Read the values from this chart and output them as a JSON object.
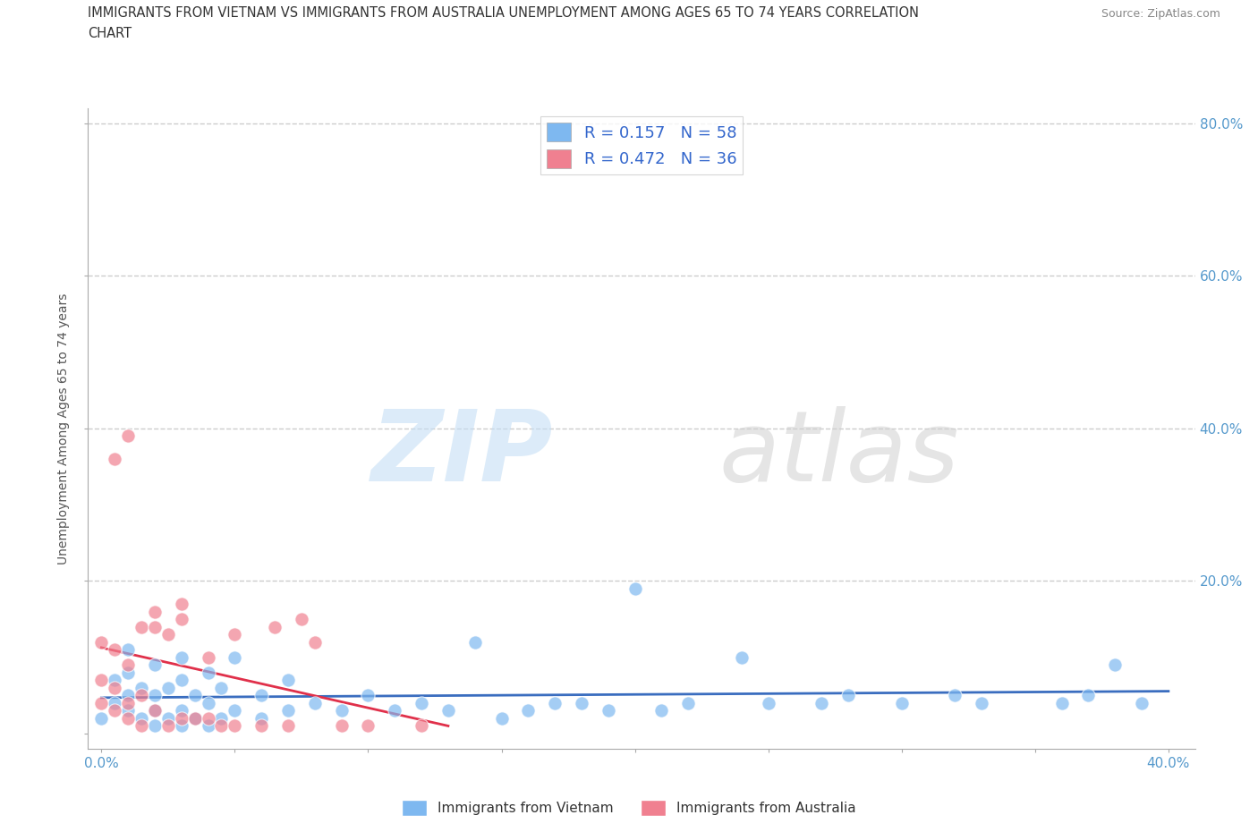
{
  "title_line1": "IMMIGRANTS FROM VIETNAM VS IMMIGRANTS FROM AUSTRALIA UNEMPLOYMENT AMONG AGES 65 TO 74 YEARS CORRELATION",
  "title_line2": "CHART",
  "source": "Source: ZipAtlas.com",
  "ylabel": "Unemployment Among Ages 65 to 74 years",
  "xlim": [
    -0.005,
    0.41
  ],
  "ylim": [
    -0.02,
    0.82
  ],
  "xticks": [
    0.0,
    0.05,
    0.1,
    0.15,
    0.2,
    0.25,
    0.3,
    0.35,
    0.4
  ],
  "yticks": [
    0.0,
    0.2,
    0.4,
    0.6,
    0.8
  ],
  "vietnam_color": "#7eb8f0",
  "australia_color": "#f08090",
  "trend_vietnam_color": "#3a6dbf",
  "trend_australia_color": "#e0304a",
  "vietnam_R": 0.157,
  "vietnam_N": 58,
  "australia_R": 0.472,
  "australia_N": 36,
  "watermark": "ZIPatlas",
  "vietnam_scatter_x": [
    0.0,
    0.005,
    0.005,
    0.01,
    0.01,
    0.01,
    0.01,
    0.015,
    0.015,
    0.02,
    0.02,
    0.02,
    0.02,
    0.025,
    0.025,
    0.03,
    0.03,
    0.03,
    0.03,
    0.035,
    0.035,
    0.04,
    0.04,
    0.04,
    0.045,
    0.045,
    0.05,
    0.05,
    0.06,
    0.06,
    0.07,
    0.07,
    0.08,
    0.09,
    0.1,
    0.11,
    0.12,
    0.13,
    0.14,
    0.15,
    0.16,
    0.17,
    0.18,
    0.19,
    0.2,
    0.21,
    0.22,
    0.24,
    0.25,
    0.27,
    0.28,
    0.3,
    0.32,
    0.33,
    0.36,
    0.37,
    0.38,
    0.39
  ],
  "vietnam_scatter_y": [
    0.02,
    0.04,
    0.07,
    0.03,
    0.05,
    0.08,
    0.11,
    0.02,
    0.06,
    0.01,
    0.03,
    0.05,
    0.09,
    0.02,
    0.06,
    0.01,
    0.03,
    0.07,
    0.1,
    0.02,
    0.05,
    0.01,
    0.04,
    0.08,
    0.02,
    0.06,
    0.03,
    0.1,
    0.02,
    0.05,
    0.03,
    0.07,
    0.04,
    0.03,
    0.05,
    0.03,
    0.04,
    0.03,
    0.12,
    0.02,
    0.03,
    0.04,
    0.04,
    0.03,
    0.19,
    0.03,
    0.04,
    0.1,
    0.04,
    0.04,
    0.05,
    0.04,
    0.05,
    0.04,
    0.04,
    0.05,
    0.09,
    0.04
  ],
  "australia_scatter_x": [
    0.0,
    0.0,
    0.0,
    0.005,
    0.005,
    0.005,
    0.005,
    0.01,
    0.01,
    0.01,
    0.01,
    0.015,
    0.015,
    0.015,
    0.02,
    0.02,
    0.02,
    0.025,
    0.025,
    0.03,
    0.03,
    0.03,
    0.035,
    0.04,
    0.04,
    0.045,
    0.05,
    0.05,
    0.06,
    0.065,
    0.07,
    0.075,
    0.08,
    0.09,
    0.1,
    0.12
  ],
  "australia_scatter_y": [
    0.04,
    0.07,
    0.12,
    0.03,
    0.06,
    0.11,
    0.36,
    0.02,
    0.04,
    0.09,
    0.39,
    0.01,
    0.05,
    0.14,
    0.03,
    0.14,
    0.16,
    0.01,
    0.13,
    0.02,
    0.15,
    0.17,
    0.02,
    0.02,
    0.1,
    0.01,
    0.01,
    0.13,
    0.01,
    0.14,
    0.01,
    0.15,
    0.12,
    0.01,
    0.01,
    0.01
  ],
  "background_color": "#ffffff",
  "grid_color": "#cccccc"
}
